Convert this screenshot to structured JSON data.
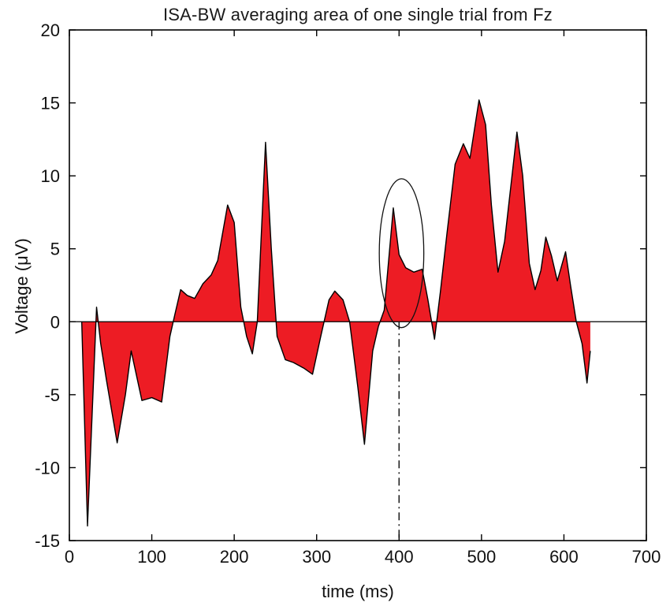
{
  "chart_data": {
    "type": "area",
    "title": "ISA-BW averaging area of one single trial from Fz",
    "xlabel": "time (ms)",
    "ylabel": "Voltage (μV)",
    "xlim": [
      0,
      700
    ],
    "ylim": [
      -15,
      20
    ],
    "xticks": [
      0,
      100,
      200,
      300,
      400,
      500,
      600,
      700
    ],
    "yticks": [
      20,
      15,
      10,
      5,
      0,
      -5,
      -10,
      -15
    ],
    "grid": false,
    "legend": null,
    "baseline": 0,
    "fill_color": "#ed1c24",
    "line_color": "#000000",
    "background_color": "#ffffff",
    "points": [
      [
        15,
        0
      ],
      [
        22,
        -14
      ],
      [
        33,
        1
      ],
      [
        38,
        -1.5
      ],
      [
        45,
        -4
      ],
      [
        58,
        -8.3
      ],
      [
        68,
        -5
      ],
      [
        75,
        -2
      ],
      [
        88,
        -5.4
      ],
      [
        100,
        -5.2
      ],
      [
        112,
        -5.5
      ],
      [
        122,
        -1
      ],
      [
        128,
        0.5
      ],
      [
        135,
        2.2
      ],
      [
        143,
        1.8
      ],
      [
        152,
        1.6
      ],
      [
        162,
        2.6
      ],
      [
        172,
        3.2
      ],
      [
        180,
        4.2
      ],
      [
        192,
        8
      ],
      [
        200,
        6.8
      ],
      [
        208,
        1
      ],
      [
        215,
        -1
      ],
      [
        222,
        -2.2
      ],
      [
        228,
        0
      ],
      [
        238,
        12.3
      ],
      [
        245,
        5
      ],
      [
        252,
        -1
      ],
      [
        262,
        -2.6
      ],
      [
        272,
        -2.8
      ],
      [
        285,
        -3.2
      ],
      [
        295,
        -3.6
      ],
      [
        305,
        -1
      ],
      [
        315,
        1.5
      ],
      [
        322,
        2.1
      ],
      [
        332,
        1.5
      ],
      [
        340,
        0
      ],
      [
        350,
        -4.5
      ],
      [
        358,
        -8.4
      ],
      [
        368,
        -2
      ],
      [
        375,
        -0.3
      ],
      [
        382,
        0.8
      ],
      [
        393,
        7.8
      ],
      [
        400,
        4.6
      ],
      [
        408,
        3.7
      ],
      [
        418,
        3.4
      ],
      [
        428,
        3.6
      ],
      [
        435,
        1.5
      ],
      [
        443,
        -1.2
      ],
      [
        450,
        2
      ],
      [
        458,
        6
      ],
      [
        468,
        10.8
      ],
      [
        478,
        12.2
      ],
      [
        486,
        11.2
      ],
      [
        497,
        15.2
      ],
      [
        505,
        13.5
      ],
      [
        512,
        8
      ],
      [
        520,
        3.4
      ],
      [
        528,
        5.5
      ],
      [
        535,
        9
      ],
      [
        543,
        13
      ],
      [
        550,
        10
      ],
      [
        558,
        4
      ],
      [
        565,
        2.2
      ],
      [
        572,
        3.5
      ],
      [
        578,
        5.8
      ],
      [
        585,
        4.5
      ],
      [
        592,
        2.8
      ],
      [
        602,
        4.8
      ],
      [
        608,
        2.5
      ],
      [
        615,
        0
      ],
      [
        622,
        -1.5
      ],
      [
        628,
        -4.2
      ],
      [
        632,
        -2
      ]
    ],
    "annotations": {
      "ellipse": {
        "cx_ms": 403,
        "cy_uv": 4.7,
        "rx_ms": 27,
        "ry_uv": 5.1
      },
      "vline": {
        "x_ms": 400,
        "v_from": 0,
        "v_to": -15,
        "style": "dash-dot"
      }
    }
  }
}
